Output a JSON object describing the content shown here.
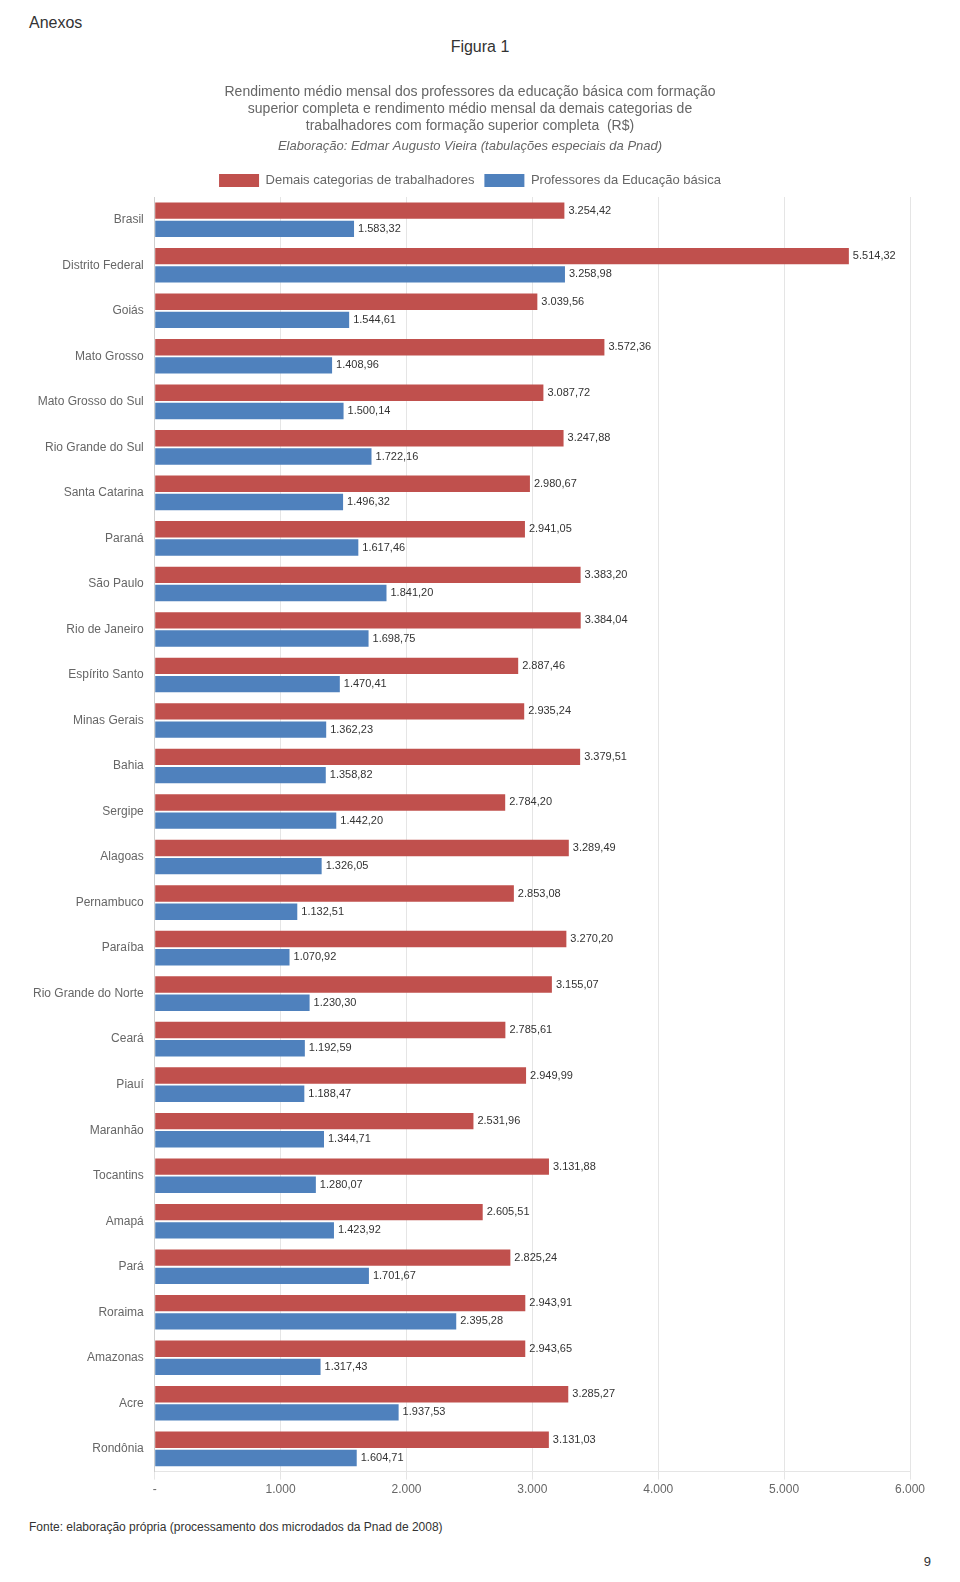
{
  "chart_data": {
    "type": "bar",
    "orientation": "horizontal",
    "title": [
      "Rendimento médio mensal dos professores da educação básica com formação",
      "superior completa e rendimento médio mensal da demais categorias de",
      "trabalhadores com formação superior completa  (R$)"
    ],
    "subtitle": "Elaboração: Edmar Augusto Vieira (tabulações especiais da Pnad)",
    "annotations": [
      "Anexos",
      "Figura 1",
      "Fonte: elaboração própria (processamento dos microdados da Pnad de 2008)",
      "9"
    ],
    "categories": [
      "Brasil",
      "Distrito Federal",
      "Goiás",
      "Mato Grosso",
      "Mato Grosso do Sul",
      "Rio Grande do Sul",
      "Santa Catarina",
      "Paraná",
      "São Paulo",
      "Rio de Janeiro",
      "Espírito Santo",
      "Minas Gerais",
      "Bahia",
      "Sergipe",
      "Alagoas",
      "Pernambuco",
      "Paraíba",
      "Rio Grande do Norte",
      "Ceará",
      "Piauí",
      "Maranhão",
      "Tocantins",
      "Amapá",
      "Pará",
      "Roraima",
      "Amazonas",
      "Acre",
      "Rondônia"
    ],
    "series": [
      {
        "name": "Demais categorias de trabalhadores",
        "color": "#C0504D",
        "values": [
          3254.42,
          5514.32,
          3039.56,
          3572.36,
          3087.72,
          3247.88,
          2980.67,
          2941.05,
          3383.2,
          3384.04,
          2887.46,
          2935.24,
          3379.51,
          2784.2,
          3289.49,
          2853.08,
          3270.2,
          3155.07,
          2785.61,
          2949.99,
          2531.96,
          3131.88,
          2605.51,
          2825.24,
          2943.91,
          2943.65,
          3285.27,
          3131.03
        ],
        "value_labels": [
          "3.254,42",
          "5.514,32",
          "3.039,56",
          "3.572,36",
          "3.087,72",
          "3.247,88",
          "2.980,67",
          "2.941,05",
          "3.383,20",
          "3.384,04",
          "2.887,46",
          "2.935,24",
          "3.379,51",
          "2.784,20",
          "3.289,49",
          "2.853,08",
          "3.270,20",
          "3.155,07",
          "2.785,61",
          "2.949,99",
          "2.531,96",
          "3.131,88",
          "2.605,51",
          "2.825,24",
          "2.943,91",
          "2.943,65",
          "3.285,27",
          "3.131,03"
        ]
      },
      {
        "name": "Professores da Educação básica",
        "color": "#4F81BD",
        "values": [
          1583.32,
          3258.98,
          1544.61,
          1408.96,
          1500.14,
          1722.16,
          1496.32,
          1617.46,
          1841.2,
          1698.75,
          1470.41,
          1362.23,
          1358.82,
          1442.2,
          1326.05,
          1132.51,
          1070.92,
          1230.3,
          1192.59,
          1188.47,
          1344.71,
          1280.07,
          1423.92,
          1701.67,
          2395.28,
          1317.43,
          1937.53,
          1604.71
        ],
        "value_labels": [
          "1.583,32",
          "3.258,98",
          "1.544,61",
          "1.408,96",
          "1.500,14",
          "1.722,16",
          "1.496,32",
          "1.617,46",
          "1.841,20",
          "1.698,75",
          "1.470,41",
          "1.362,23",
          "1.358,82",
          "1.442,20",
          "1.326,05",
          "1.132,51",
          "1.070,92",
          "1.230,30",
          "1.192,59",
          "1.188,47",
          "1.344,71",
          "1.280,07",
          "1.423,92",
          "1.701,67",
          "2.395,28",
          "1.317,43",
          "1.937,53",
          "1.604,71"
        ]
      }
    ],
    "xlim": [
      0,
      6000
    ],
    "xticks": [
      {
        "value": 0,
        "label": "-"
      },
      {
        "value": 1000,
        "label": "1.000"
      },
      {
        "value": 2000,
        "label": "2.000"
      },
      {
        "value": 3000,
        "label": "3.000"
      },
      {
        "value": 4000,
        "label": "4.000"
      },
      {
        "value": 5000,
        "label": "5.000"
      },
      {
        "value": 6000,
        "label": "6.000"
      }
    ],
    "grid": true,
    "legend": "top",
    "data_labels": true
  }
}
